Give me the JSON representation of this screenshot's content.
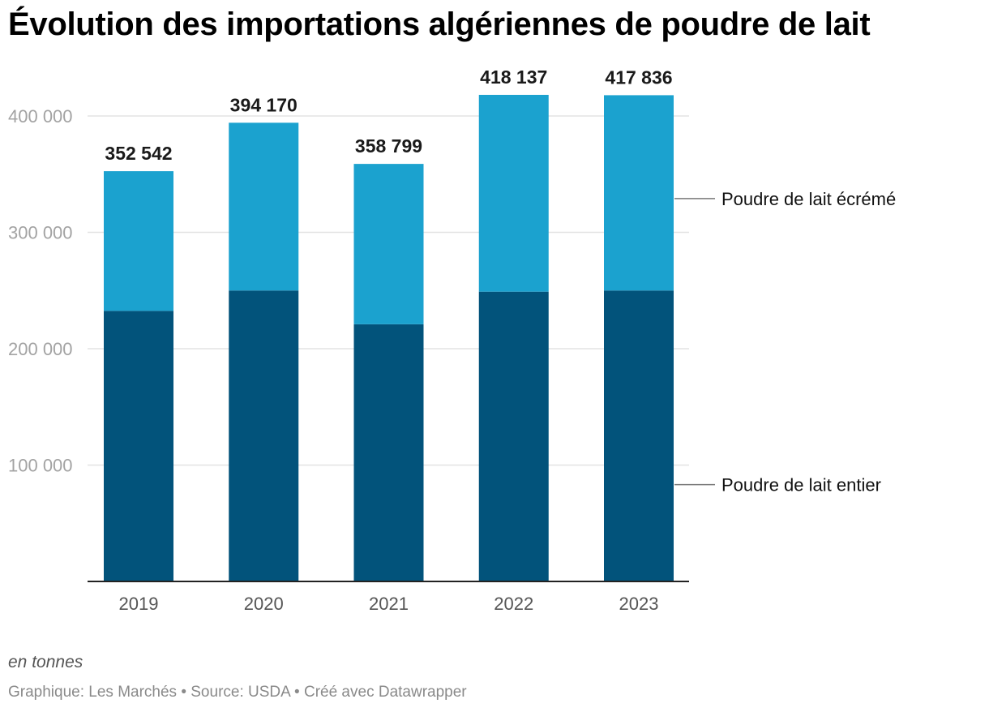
{
  "title": "Évolution des importations algériennes de poudre de lait",
  "note": "en tonnes",
  "credit": "Graphique: Les Marchés • Source: USDA • Créé avec Datawrapper",
  "chart_data": {
    "type": "bar",
    "stacked": true,
    "categories": [
      "2019",
      "2020",
      "2021",
      "2022",
      "2023"
    ],
    "series": [
      {
        "name": "Poudre de lait entier",
        "color": "#02537b",
        "values": [
          232500,
          250000,
          221000,
          249000,
          250000
        ]
      },
      {
        "name": "Poudre de lait écrémé",
        "color": "#1ba2cf",
        "values": [
          120042,
          144170,
          137799,
          169137,
          167836
        ]
      }
    ],
    "totals": [
      352542,
      394170,
      358799,
      418137,
      417836
    ],
    "total_labels": [
      "352 542",
      "394 170",
      "358 799",
      "418 137",
      "417 836"
    ],
    "y_ticks": [
      100000,
      200000,
      300000,
      400000
    ],
    "y_tick_labels": [
      "100 000",
      "200 000",
      "300 000",
      "400 000"
    ],
    "ylim": [
      0,
      420000
    ],
    "xlabel": "",
    "ylabel": "en tonnes",
    "gridlines": true,
    "legend_position": "right"
  }
}
